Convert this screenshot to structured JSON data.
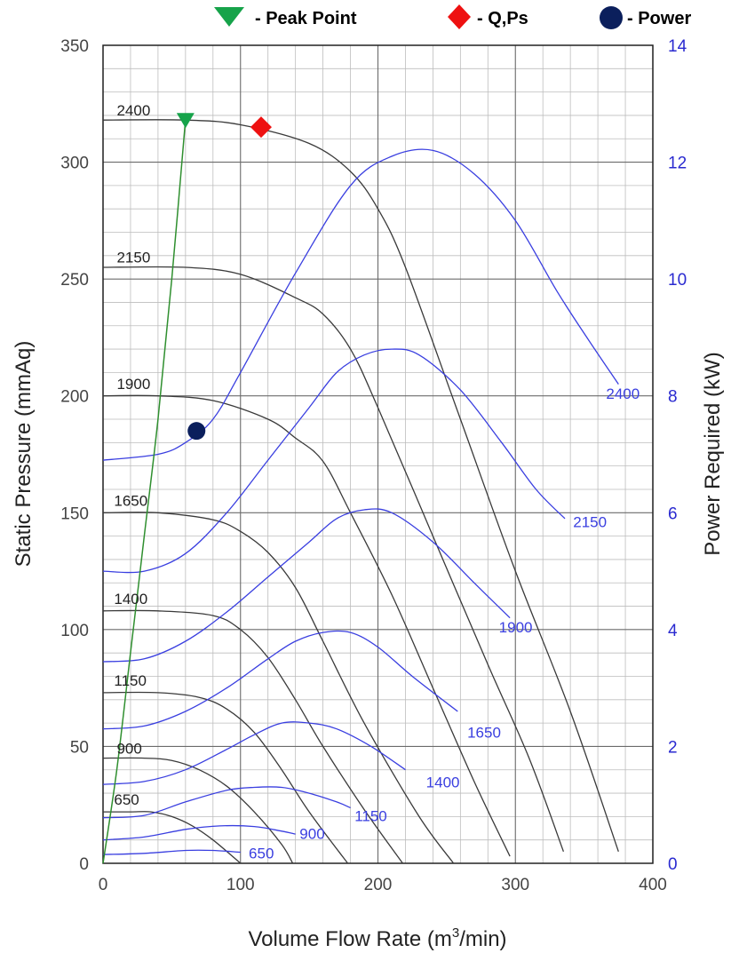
{
  "chart_data": {
    "type": "line",
    "legend": {
      "placement": "top",
      "items": [
        {
          "symbol": "triangle-down",
          "color": "#16a34a",
          "label": "- Peak Point"
        },
        {
          "symbol": "diamond",
          "color": "#ee1111",
          "label": "- Q,Ps"
        },
        {
          "symbol": "circle",
          "color": "#0b1f5c",
          "label": "- Power"
        }
      ]
    },
    "xlabel": "Volume Flow Rate (m³/min)",
    "ylabel": "Static Pressure (mmAq)",
    "y2label": "Power Required (kW)",
    "xlim": [
      0,
      400
    ],
    "ylim": [
      0,
      350
    ],
    "y2lim": [
      0,
      14
    ],
    "x_ticks": [
      0,
      100,
      200,
      300,
      400
    ],
    "y_ticks": [
      0,
      50,
      100,
      150,
      200,
      250,
      300,
      350
    ],
    "y2_ticks": [
      0,
      2,
      4,
      6,
      8,
      10,
      12,
      14
    ],
    "grid": true,
    "colors": {
      "pressure": "#3a3a3a",
      "power": "#3a3fe0",
      "peak_line": "#2f8f2f",
      "axis_right": "#2a2ad0"
    },
    "pressure_series": [
      {
        "name": "2400",
        "points": [
          [
            0,
            318
          ],
          [
            60,
            318
          ],
          [
            100,
            316
          ],
          [
            150,
            308
          ],
          [
            180,
            296
          ],
          [
            200,
            280
          ],
          [
            220,
            255
          ],
          [
            260,
            190
          ],
          [
            300,
            125
          ],
          [
            340,
            65
          ],
          [
            375,
            5
          ]
        ]
      },
      {
        "name": "2150",
        "points": [
          [
            0,
            255
          ],
          [
            60,
            255
          ],
          [
            100,
            252
          ],
          [
            140,
            242
          ],
          [
            160,
            235
          ],
          [
            180,
            220
          ],
          [
            200,
            195
          ],
          [
            240,
            140
          ],
          [
            280,
            85
          ],
          [
            310,
            45
          ],
          [
            335,
            5
          ]
        ]
      },
      {
        "name": "1900",
        "points": [
          [
            0,
            200
          ],
          [
            40,
            200
          ],
          [
            80,
            198
          ],
          [
            120,
            190
          ],
          [
            140,
            182
          ],
          [
            160,
            172
          ],
          [
            180,
            150
          ],
          [
            210,
            115
          ],
          [
            240,
            75
          ],
          [
            270,
            35
          ],
          [
            296,
            3
          ]
        ]
      },
      {
        "name": "1650",
        "points": [
          [
            0,
            150
          ],
          [
            40,
            150
          ],
          [
            80,
            147
          ],
          [
            100,
            142
          ],
          [
            120,
            133
          ],
          [
            140,
            118
          ],
          [
            160,
            95
          ],
          [
            190,
            60
          ],
          [
            230,
            20
          ],
          [
            255,
            0
          ]
        ]
      },
      {
        "name": "1400",
        "points": [
          [
            0,
            108
          ],
          [
            40,
            108
          ],
          [
            80,
            106
          ],
          [
            100,
            100
          ],
          [
            120,
            88
          ],
          [
            140,
            70
          ],
          [
            160,
            50
          ],
          [
            190,
            23
          ],
          [
            218,
            0
          ]
        ]
      },
      {
        "name": "1150",
        "points": [
          [
            0,
            73
          ],
          [
            40,
            73
          ],
          [
            70,
            71
          ],
          [
            90,
            66
          ],
          [
            110,
            56
          ],
          [
            130,
            40
          ],
          [
            150,
            22
          ],
          [
            178,
            0
          ]
        ]
      },
      {
        "name": "900",
        "points": [
          [
            0,
            45
          ],
          [
            30,
            45
          ],
          [
            50,
            44
          ],
          [
            70,
            40
          ],
          [
            90,
            33
          ],
          [
            110,
            22
          ],
          [
            130,
            8
          ],
          [
            138,
            0
          ]
        ]
      },
      {
        "name": "650",
        "points": [
          [
            0,
            22
          ],
          [
            20,
            22
          ],
          [
            35,
            22
          ],
          [
            50,
            20
          ],
          [
            65,
            16
          ],
          [
            80,
            10
          ],
          [
            100,
            0
          ]
        ]
      }
    ],
    "power_series": [
      {
        "name": "2400",
        "points": [
          [
            0,
            6.9
          ],
          [
            40,
            7.0
          ],
          [
            60,
            7.2
          ],
          [
            80,
            7.6
          ],
          [
            100,
            8.4
          ],
          [
            140,
            10.1
          ],
          [
            180,
            11.6
          ],
          [
            210,
            12.1
          ],
          [
            240,
            12.2
          ],
          [
            270,
            11.8
          ],
          [
            300,
            11.0
          ],
          [
            330,
            9.8
          ],
          [
            352,
            9.0
          ],
          [
            375,
            8.2
          ]
        ]
      },
      {
        "name": "2150",
        "points": [
          [
            0,
            5.0
          ],
          [
            30,
            5.0
          ],
          [
            60,
            5.3
          ],
          [
            90,
            6.0
          ],
          [
            120,
            6.9
          ],
          [
            150,
            7.8
          ],
          [
            170,
            8.4
          ],
          [
            190,
            8.7
          ],
          [
            210,
            8.8
          ],
          [
            230,
            8.7
          ],
          [
            260,
            8.1
          ],
          [
            290,
            7.2
          ],
          [
            315,
            6.4
          ],
          [
            336,
            5.9
          ]
        ]
      },
      {
        "name": "1900",
        "points": [
          [
            0,
            3.45
          ],
          [
            30,
            3.5
          ],
          [
            60,
            3.8
          ],
          [
            90,
            4.3
          ],
          [
            120,
            4.9
          ],
          [
            150,
            5.5
          ],
          [
            170,
            5.9
          ],
          [
            190,
            6.05
          ],
          [
            210,
            6.0
          ],
          [
            240,
            5.5
          ],
          [
            270,
            4.8
          ],
          [
            296,
            4.2
          ]
        ]
      },
      {
        "name": "1650",
        "points": [
          [
            0,
            2.3
          ],
          [
            30,
            2.35
          ],
          [
            60,
            2.6
          ],
          [
            90,
            3.0
          ],
          [
            120,
            3.5
          ],
          [
            140,
            3.8
          ],
          [
            160,
            3.95
          ],
          [
            180,
            3.95
          ],
          [
            200,
            3.7
          ],
          [
            225,
            3.2
          ],
          [
            258,
            2.6
          ]
        ]
      },
      {
        "name": "1400",
        "points": [
          [
            0,
            1.35
          ],
          [
            30,
            1.4
          ],
          [
            60,
            1.6
          ],
          [
            90,
            1.95
          ],
          [
            110,
            2.2
          ],
          [
            130,
            2.4
          ],
          [
            150,
            2.4
          ],
          [
            170,
            2.3
          ],
          [
            195,
            2.0
          ],
          [
            220,
            1.6
          ]
        ]
      },
      {
        "name": "1150",
        "points": [
          [
            0,
            0.78
          ],
          [
            30,
            0.82
          ],
          [
            60,
            1.05
          ],
          [
            90,
            1.25
          ],
          [
            110,
            1.3
          ],
          [
            130,
            1.3
          ],
          [
            150,
            1.2
          ],
          [
            170,
            1.05
          ],
          [
            180,
            0.95
          ]
        ]
      },
      {
        "name": "900",
        "points": [
          [
            0,
            0.4
          ],
          [
            30,
            0.45
          ],
          [
            60,
            0.58
          ],
          [
            85,
            0.64
          ],
          [
            110,
            0.63
          ],
          [
            130,
            0.55
          ],
          [
            140,
            0.5
          ]
        ]
      },
      {
        "name": "650",
        "points": [
          [
            0,
            0.15
          ],
          [
            30,
            0.17
          ],
          [
            60,
            0.22
          ],
          [
            80,
            0.22
          ],
          [
            100,
            0.19
          ]
        ]
      }
    ],
    "pressure_labels": [
      {
        "text": "2400",
        "x": 10,
        "y": 320
      },
      {
        "text": "2150",
        "x": 10,
        "y": 257
      },
      {
        "text": "1900",
        "x": 10,
        "y": 203
      },
      {
        "text": "1650",
        "x": 8,
        "y": 153
      },
      {
        "text": "1400",
        "x": 8,
        "y": 111
      },
      {
        "text": "1150",
        "x": 8,
        "y": 76
      },
      {
        "text": "900",
        "x": 10,
        "y": 47
      },
      {
        "text": "650",
        "x": 8,
        "y": 25
      }
    ],
    "power_labels": [
      {
        "text": "2400",
        "x": 366,
        "y": 7.95
      },
      {
        "text": "2150",
        "x": 342,
        "y": 5.75
      },
      {
        "text": "1900",
        "x": 288,
        "y": 3.95
      },
      {
        "text": "1650",
        "x": 265,
        "y": 2.15
      },
      {
        "text": "1400",
        "x": 235,
        "y": 1.3
      },
      {
        "text": "1150",
        "x": 183,
        "y": 0.72
      },
      {
        "text": "900",
        "x": 143,
        "y": 0.42
      },
      {
        "text": "650",
        "x": 106,
        "y": 0.08
      }
    ],
    "peak_line": [
      [
        0,
        0
      ],
      [
        10,
        40
      ],
      [
        20,
        90
      ],
      [
        30,
        140
      ],
      [
        40,
        190
      ],
      [
        50,
        250
      ],
      [
        60,
        318
      ]
    ],
    "markers": [
      {
        "type": "peak",
        "x": 60,
        "y": 318,
        "axis": "left"
      },
      {
        "type": "qps",
        "x": 115,
        "y": 315,
        "axis": "left"
      },
      {
        "type": "power",
        "x": 68,
        "y": 7.4,
        "axis": "right"
      }
    ]
  }
}
